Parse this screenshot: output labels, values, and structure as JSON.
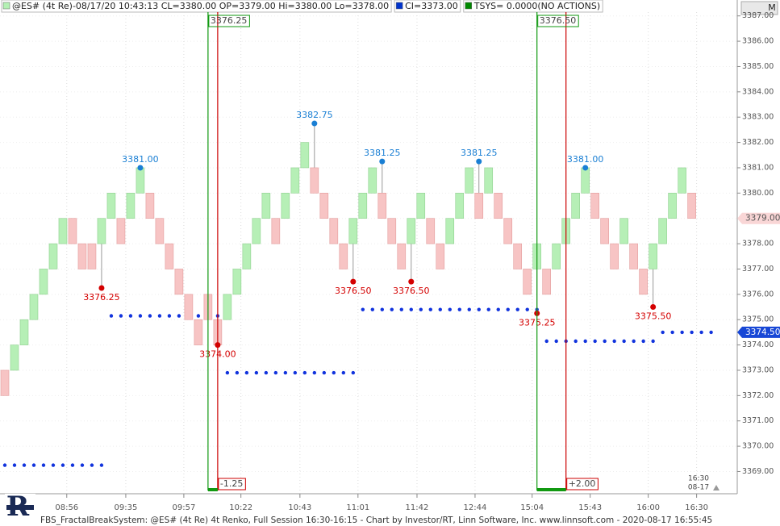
{
  "chart_data": {
    "type": "renko",
    "header": [
      {
        "text": "@ES# (4t Re)-08/17/20 10:43:13 CL=3380.00 OP=3379.00 Hi=3380.00 Lo=3378.00",
        "color": "#b4f0b4"
      },
      {
        "text": "CI=3373.00",
        "color": "#0033cc"
      },
      {
        "text": "TSYS=  0.0000(NO ACTIONS)",
        "color": "#008800"
      }
    ],
    "button": "M",
    "footer": "FBS_FractalBreakSystem: @ES# (4t Re) 4t Renko, Full Session 16:30-16:15 - Chart by Investor/RT, Linn Software, Inc. www.linnsoft.com - 2020-08-17 16:55:45",
    "corner_time": [
      "16:30",
      "08-17"
    ],
    "up_color": "#b6efb6",
    "down_color": "#f7c4c4",
    "grid": true,
    "open": [
      3373,
      3373,
      3374,
      3375,
      3376,
      3377,
      3378,
      3379,
      3378,
      3378,
      3378,
      3379,
      3379,
      3379,
      3380,
      3380,
      3379,
      3378,
      3377,
      3376,
      3375,
      3376,
      3375,
      3375,
      3376,
      3377,
      3378,
      3379,
      3379,
      3379,
      3380,
      3381,
      3381,
      3380,
      3379,
      3378,
      3378,
      3379,
      3380,
      3380,
      3379,
      3378,
      3378,
      3379,
      3379,
      3378,
      3378,
      3379,
      3380,
      3380,
      3380,
      3380,
      3379,
      3378,
      3377,
      3377,
      3377,
      3377,
      3378,
      3379,
      3380,
      3380,
      3379,
      3378,
      3378,
      3378,
      3377,
      3377,
      3378,
      3379,
      3380,
      3380
    ],
    "close": [
      3372,
      3374,
      3375,
      3376,
      3377,
      3378,
      3379,
      3378,
      3377,
      3377,
      3379,
      3380,
      3378,
      3380,
      3381,
      3379,
      3378,
      3377,
      3376,
      3375,
      3374,
      3375,
      3374,
      3376,
      3377,
      3378,
      3379,
      3380,
      3378,
      3380,
      3381,
      3382,
      3380,
      3379,
      3378,
      3377,
      3379,
      3380,
      3381,
      3379,
      3378,
      3377,
      3379,
      3380,
      3378,
      3377,
      3379,
      3380,
      3381,
      3379,
      3381,
      3379,
      3378,
      3377,
      3376,
      3378,
      3376,
      3378,
      3379,
      3380,
      3381,
      3379,
      3378,
      3377,
      3379,
      3377,
      3376,
      3378,
      3379,
      3380,
      3381,
      3379
    ],
    "annotations": [
      {
        "index": 10,
        "value": 3376.25,
        "label": "3376.25",
        "kind": "low"
      },
      {
        "index": 14,
        "value": 3381,
        "label": "3381.00",
        "kind": "high"
      },
      {
        "index": 22,
        "value": 3374,
        "label": "3374.00",
        "kind": "low"
      },
      {
        "index": 32,
        "value": 3382.75,
        "label": "3382.75",
        "kind": "high"
      },
      {
        "index": 36,
        "value": 3376.5,
        "label": "3376.50",
        "kind": "low"
      },
      {
        "index": 39,
        "value": 3381.25,
        "label": "3381.25",
        "kind": "high"
      },
      {
        "index": 42,
        "value": 3376.5,
        "label": "3376.50",
        "kind": "low"
      },
      {
        "index": 49,
        "value": 3381.25,
        "label": "3381.25",
        "kind": "high"
      },
      {
        "index": 55,
        "value": 3375.25,
        "label": "3375.25",
        "kind": "low"
      },
      {
        "index": 60,
        "value": 3381,
        "label": "3381.00",
        "kind": "high"
      },
      {
        "index": 67,
        "value": 3375.5,
        "label": "3375.50",
        "kind": "low"
      }
    ],
    "levels": [
      {
        "value": 3369.25,
        "from": 0,
        "to": 10
      },
      {
        "value": 3375.15,
        "from": 11,
        "to": 22
      },
      {
        "value": 3372.9,
        "from": 23,
        "to": 36
      },
      {
        "value": 3375.4,
        "from": 37,
        "to": 55
      },
      {
        "value": 3374.15,
        "from": 56,
        "to": 67
      },
      {
        "value": 3374.5,
        "from": 68,
        "to": 73
      }
    ],
    "signals": [
      {
        "entry": 21,
        "exit": 22,
        "label": "3376.25",
        "result": "-1.25"
      },
      {
        "entry": 55,
        "exit": 58,
        "label": "3376.50",
        "result": "+2.00"
      }
    ],
    "last_price": {
      "value": 3379,
      "label": "3379.00"
    },
    "stop_price": {
      "value": 3374.5,
      "label": "3374.50"
    },
    "xlim": [
      -0.5,
      75.7
    ],
    "ylim": [
      3368.25,
      3387.15
    ],
    "xticks": [
      {
        "value": 6.4,
        "label": "08:56"
      },
      {
        "value": 12.5,
        "label": "09:35"
      },
      {
        "value": 18.5,
        "label": "09:57"
      },
      {
        "value": 24.4,
        "label": "10:22"
      },
      {
        "value": 30.5,
        "label": "10:43"
      },
      {
        "value": 36.5,
        "label": "11:01"
      },
      {
        "value": 42.6,
        "label": "11:42"
      },
      {
        "value": 48.6,
        "label": "12:44"
      },
      {
        "value": 54.5,
        "label": "15:04"
      },
      {
        "value": 60.5,
        "label": "15:43"
      },
      {
        "value": 66.5,
        "label": "16:00"
      },
      {
        "value": 71.5,
        "label": "16:30"
      }
    ],
    "yticks": [
      {
        "value": 3369,
        "label": "3369.00"
      },
      {
        "value": 3370,
        "label": "3370.00"
      },
      {
        "value": 3371,
        "label": "3371.00"
      },
      {
        "value": 3372,
        "label": "3372.00"
      },
      {
        "value": 3373,
        "label": "3373.00"
      },
      {
        "value": 3374,
        "label": "3374.00"
      },
      {
        "value": 3375,
        "label": "3375.00"
      },
      {
        "value": 3376,
        "label": "3376.00"
      },
      {
        "value": 3377,
        "label": "3377.00"
      },
      {
        "value": 3378,
        "label": "3378.00"
      },
      {
        "value": 3379,
        "label": "3379.00"
      },
      {
        "value": 3380,
        "label": "3380.00"
      },
      {
        "value": 3381,
        "label": "3381.00"
      },
      {
        "value": 3382,
        "label": "3382.00"
      },
      {
        "value": 3383,
        "label": "3383.00"
      },
      {
        "value": 3384,
        "label": "3384.00"
      },
      {
        "value": 3385,
        "label": "3385.00"
      },
      {
        "value": 3386,
        "label": "3386.00"
      },
      {
        "value": 3387,
        "label": "3387.00"
      }
    ]
  }
}
